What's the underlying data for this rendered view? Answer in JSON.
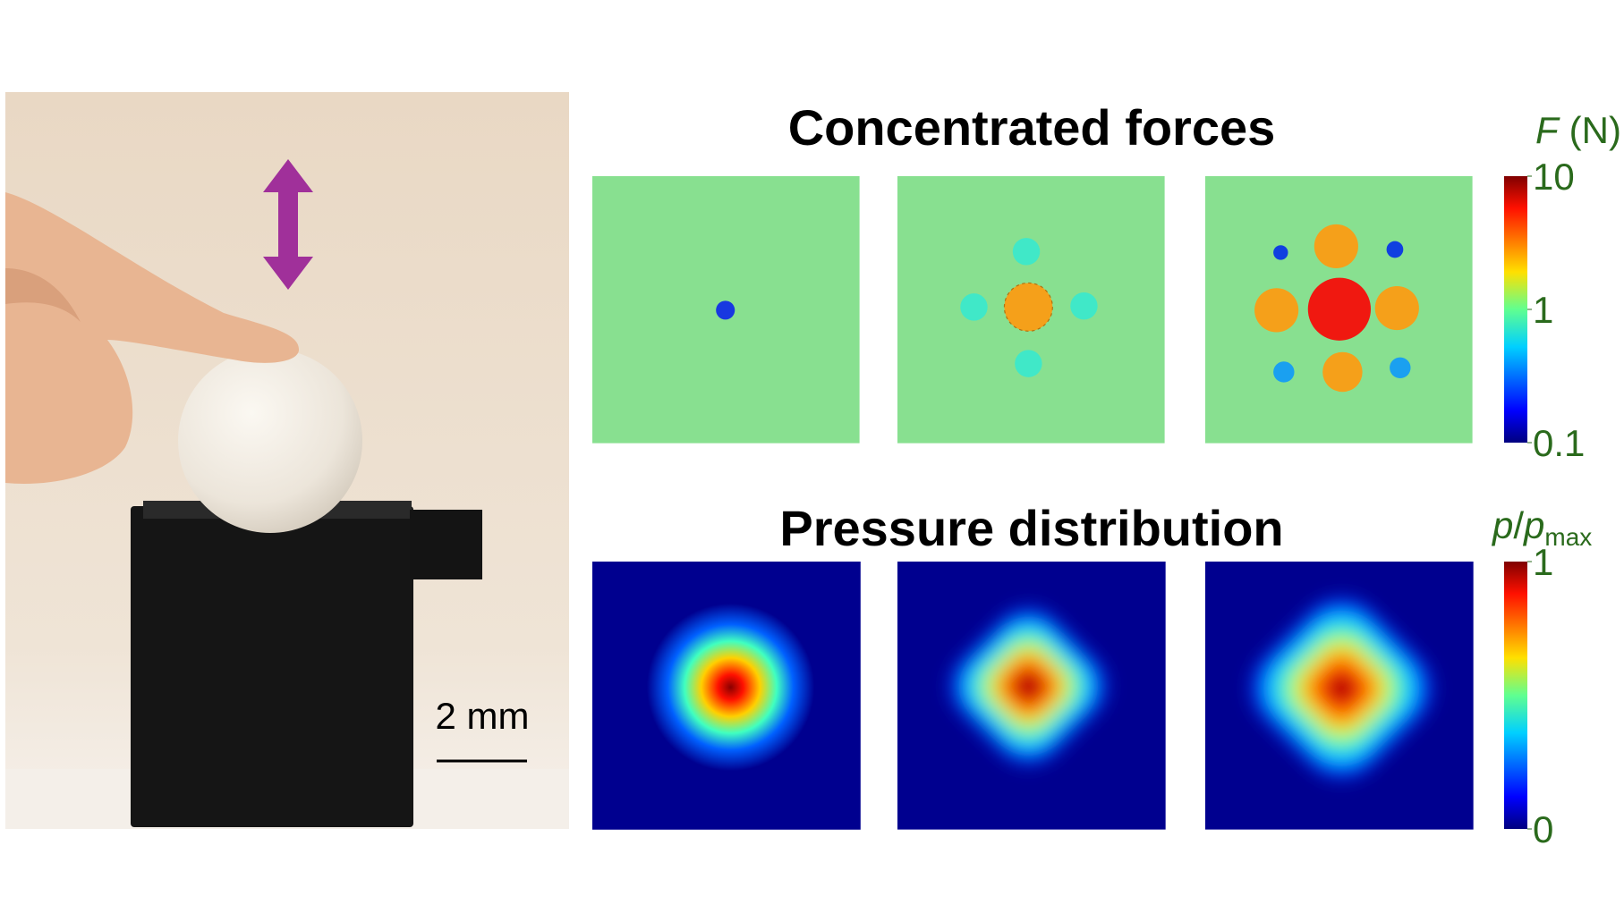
{
  "title_forces": "Concentrated forces",
  "title_pressure": "Pressure distribution",
  "force_colorbar": {
    "label_symbol": "F",
    "label_unit": "(N)",
    "scale": "log",
    "range": [
      0.1,
      10
    ],
    "ticks": [
      0.1,
      1,
      10
    ]
  },
  "pressure_colorbar": {
    "label_parts": [
      "p",
      "/",
      "p",
      "max"
    ],
    "scale": "linear",
    "range": [
      0,
      1
    ],
    "ticks": [
      0,
      1
    ]
  },
  "scale_bar": "2 mm"
}
